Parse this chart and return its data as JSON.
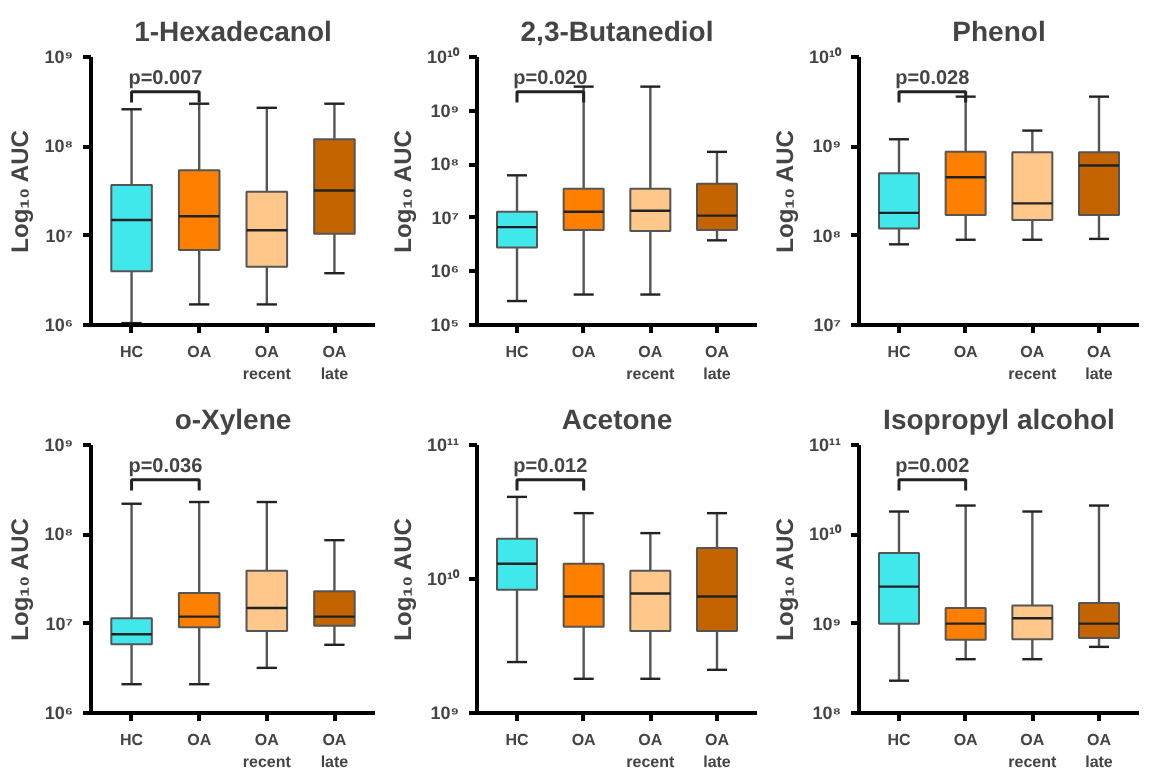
{
  "chart_data": [
    {
      "type": "box",
      "title": "1-Hexadecanol",
      "ylabel": "Log₁₀ AUC",
      "categories": [
        "HC",
        "OA",
        "OA\nrecent",
        "OA\nlate"
      ],
      "colors": [
        "#40e8ec",
        "#ff8000",
        "#ffc88a",
        "#c46400"
      ],
      "log": true,
      "grid": false,
      "ylim": [
        1000000.0,
        1000000000.0
      ],
      "yticks": [
        {
          "value": 1000000.0,
          "label": "10⁶"
        },
        {
          "value": 10000000.0,
          "label": "10⁷"
        },
        {
          "value": 100000000.0,
          "label": "10⁸"
        },
        {
          "value": 1000000000.0,
          "label": "10⁹"
        }
      ],
      "annotations": [
        "p=0.007"
      ],
      "boxes": [
        {
          "low": 1050000.0,
          "q1": 4000000.0,
          "median": 15000000.0,
          "q3": 37000000.0,
          "high": 260000000.0
        },
        {
          "low": 1700000.0,
          "q1": 6900000.0,
          "median": 16500000.0,
          "q3": 54000000.0,
          "high": 300000000.0
        },
        {
          "low": 1700000.0,
          "q1": 4500000.0,
          "median": 11500000.0,
          "q3": 31000000.0,
          "high": 270000000.0
        },
        {
          "low": 3800000.0,
          "q1": 10500000.0,
          "median": 32000000.0,
          "q3": 120000000.0,
          "high": 300000000.0
        }
      ]
    },
    {
      "type": "box",
      "title": "2,3-Butanediol",
      "ylabel": "Log₁₀ AUC",
      "categories": [
        "HC",
        "OA",
        "OA\nrecent",
        "OA\nlate"
      ],
      "colors": [
        "#40e8ec",
        "#ff8000",
        "#ffc88a",
        "#c46400"
      ],
      "log": true,
      "grid": false,
      "ylim": [
        100000.0,
        10000000000.0
      ],
      "yticks": [
        {
          "value": 100000.0,
          "label": "10⁵"
        },
        {
          "value": 1000000.0,
          "label": "10⁶"
        },
        {
          "value": 10000000.0,
          "label": "10⁷"
        },
        {
          "value": 100000000.0,
          "label": "10⁸"
        },
        {
          "value": 1000000000.0,
          "label": "10⁹"
        },
        {
          "value": 10000000000.0,
          "label": "10¹⁰"
        }
      ],
      "annotations": [
        "p=0.020"
      ],
      "boxes": [
        {
          "low": 280000.0,
          "q1": 2800000.0,
          "median": 6700000.0,
          "q3": 13000000.0,
          "high": 62000000.0
        },
        {
          "low": 370000.0,
          "q1": 5900000.0,
          "median": 13000000.0,
          "q3": 35000000.0,
          "high": 2800000000.0
        },
        {
          "low": 370000.0,
          "q1": 5700000.0,
          "median": 13500000.0,
          "q3": 35000000.0,
          "high": 2800000000.0
        },
        {
          "low": 3800000.0,
          "q1": 5900000.0,
          "median": 11000000.0,
          "q3": 43000000.0,
          "high": 170000000.0
        }
      ]
    },
    {
      "type": "box",
      "title": "Phenol",
      "ylabel": "Log₁₀ AUC",
      "categories": [
        "HC",
        "OA",
        "OA\nrecent",
        "OA\nlate"
      ],
      "colors": [
        "#40e8ec",
        "#ff8000",
        "#ffc88a",
        "#c46400"
      ],
      "log": true,
      "grid": false,
      "ylim": [
        10000000.0,
        10000000000.0
      ],
      "yticks": [
        {
          "value": 10000000.0,
          "label": "10⁷"
        },
        {
          "value": 100000000.0,
          "label": "10⁸"
        },
        {
          "value": 1000000000.0,
          "label": "10⁹"
        },
        {
          "value": 10000000000.0,
          "label": "10¹⁰"
        }
      ],
      "annotations": [
        "p=0.028"
      ],
      "boxes": [
        {
          "low": 80000000.0,
          "q1": 120000000.0,
          "median": 180000000.0,
          "q3": 500000000.0,
          "high": 1200000000.0
        },
        {
          "low": 90000000.0,
          "q1": 170000000.0,
          "median": 450000000.0,
          "q3": 870000000.0,
          "high": 3600000000.0
        },
        {
          "low": 90000000.0,
          "q1": 150000000.0,
          "median": 230000000.0,
          "q3": 860000000.0,
          "high": 1500000000.0
        },
        {
          "low": 92000000.0,
          "q1": 170000000.0,
          "median": 610000000.0,
          "q3": 860000000.0,
          "high": 3600000000.0
        }
      ]
    },
    {
      "type": "box",
      "title": "o-Xylene",
      "ylabel": "Log₁₀ AUC",
      "categories": [
        "HC",
        "OA",
        "OA\nrecent",
        "OA\nlate"
      ],
      "colors": [
        "#40e8ec",
        "#ff8000",
        "#ffc88a",
        "#c46400"
      ],
      "log": true,
      "grid": false,
      "ylim": [
        1000000.0,
        1000000000.0
      ],
      "yticks": [
        {
          "value": 1000000.0,
          "label": "10⁶"
        },
        {
          "value": 10000000.0,
          "label": "10⁷"
        },
        {
          "value": 100000000.0,
          "label": "10⁸"
        },
        {
          "value": 1000000000.0,
          "label": "10⁹"
        }
      ],
      "annotations": [
        "p=0.036"
      ],
      "boxes": [
        {
          "low": 2100000.0,
          "q1": 5900000.0,
          "median": 7600000.0,
          "q3": 11500000.0,
          "high": 220000000.0
        },
        {
          "low": 2100000.0,
          "q1": 9100000.0,
          "median": 12000000.0,
          "q3": 22000000.0,
          "high": 230000000.0
        },
        {
          "low": 3200000.0,
          "q1": 8300000.0,
          "median": 15000000.0,
          "q3": 39000000.0,
          "high": 230000000.0
        },
        {
          "low": 5800000.0,
          "q1": 9500000.0,
          "median": 12000000.0,
          "q3": 23000000.0,
          "high": 86000000.0
        }
      ]
    },
    {
      "type": "box",
      "title": "Acetone",
      "ylabel": "Log₁₀ AUC",
      "categories": [
        "HC",
        "OA",
        "OA\nrecent",
        "OA\nlate"
      ],
      "colors": [
        "#40e8ec",
        "#ff8000",
        "#ffc88a",
        "#c46400"
      ],
      "log": true,
      "grid": false,
      "ylim": [
        1000000000.0,
        100000000000.0
      ],
      "yticks": [
        {
          "value": 1000000000.0,
          "label": "10⁹"
        },
        {
          "value": 10000000000.0,
          "label": "10¹⁰"
        },
        {
          "value": 100000000000.0,
          "label": "10¹¹"
        }
      ],
      "annotations": [
        "p=0.012"
      ],
      "boxes": [
        {
          "low": 2400000000.0,
          "q1": 8300000000.0,
          "median": 13000000000.0,
          "q3": 20000000000.0,
          "high": 41000000000.0
        },
        {
          "low": 1800000000.0,
          "q1": 4400000000.0,
          "median": 7400000000.0,
          "q3": 13000000000.0,
          "high": 31000000000.0
        },
        {
          "low": 1800000000.0,
          "q1": 4100000000.0,
          "median": 7800000000.0,
          "q3": 11500000000.0,
          "high": 22000000000.0
        },
        {
          "low": 2100000000.0,
          "q1": 4100000000.0,
          "median": 7400000000.0,
          "q3": 17000000000.0,
          "high": 31000000000.0
        }
      ]
    },
    {
      "type": "box",
      "title": "Isopropyl alcohol",
      "ylabel": "Log₁₀ AUC",
      "categories": [
        "HC",
        "OA",
        "OA\nrecent",
        "OA\nlate"
      ],
      "colors": [
        "#40e8ec",
        "#ff8000",
        "#ffc88a",
        "#c46400"
      ],
      "log": true,
      "grid": false,
      "ylim": [
        100000000.0,
        100000000000.0
      ],
      "yticks": [
        {
          "value": 100000000.0,
          "label": "10⁸"
        },
        {
          "value": 1000000000.0,
          "label": "10⁹"
        },
        {
          "value": 10000000000.0,
          "label": "10¹⁰"
        },
        {
          "value": 100000000000.0,
          "label": "10¹¹"
        }
      ],
      "annotations": [
        "p=0.002"
      ],
      "boxes": [
        {
          "low": 230000000.0,
          "q1": 1000000000.0,
          "median": 2600000000.0,
          "q3": 6200000000.0,
          "high": 18000000000.0
        },
        {
          "low": 400000000.0,
          "q1": 660000000.0,
          "median": 1000000000.0,
          "q3": 1500000000.0,
          "high": 21000000000.0
        },
        {
          "low": 400000000.0,
          "q1": 670000000.0,
          "median": 1150000000.0,
          "q3": 1600000000.0,
          "high": 18000000000.0
        },
        {
          "low": 550000000.0,
          "q1": 690000000.0,
          "median": 1000000000.0,
          "q3": 1700000000.0,
          "high": 21000000000.0
        }
      ]
    }
  ]
}
